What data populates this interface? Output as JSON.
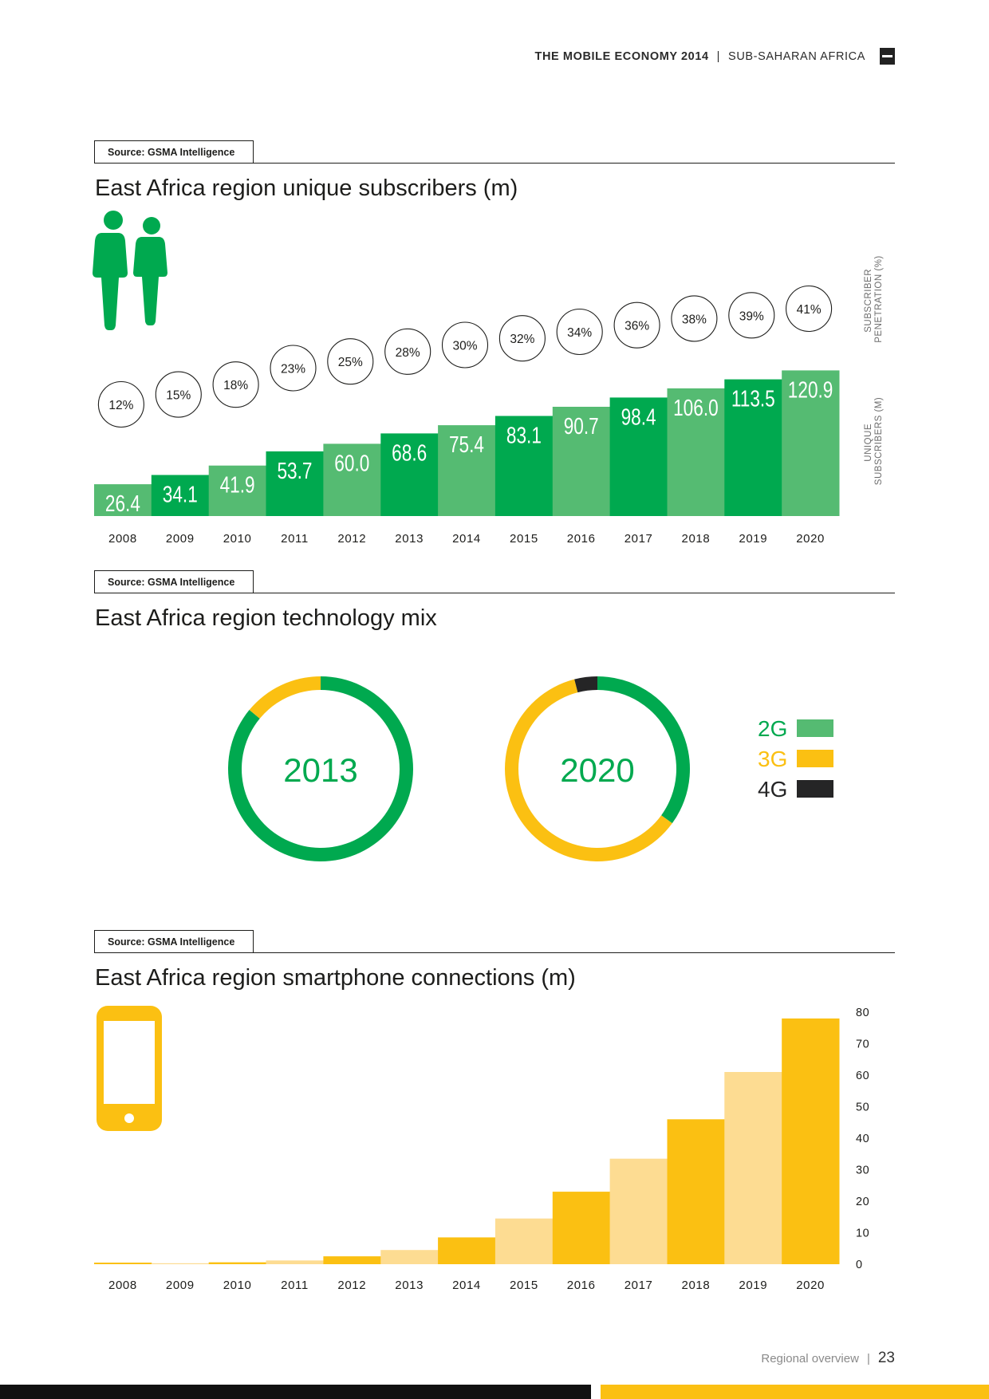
{
  "header": {
    "publication": "THE MOBILE ECONOMY 2014",
    "separator": "|",
    "region": "SUB-SAHARAN AFRICA"
  },
  "sources": [
    "Source: GSMA Intelligence",
    "Source: GSMA Intelligence",
    "Source: GSMA Intelligence"
  ],
  "colors": {
    "green_dark": "#00a94f",
    "green_light": "#55bb72",
    "yellow": "#fbc012",
    "yellow_light": "#fddc92",
    "dark": "#252526"
  },
  "icons": {
    "subscribers": "people-icon",
    "smartphone": "smartphone-icon"
  },
  "footer": {
    "section": "Regional overview",
    "separator": "|",
    "page": "23"
  },
  "chart_data": [
    {
      "type": "bar",
      "title": "East Africa region unique subscribers (m)",
      "categories": [
        "2008",
        "2009",
        "2010",
        "2011",
        "2012",
        "2013",
        "2014",
        "2015",
        "2016",
        "2017",
        "2018",
        "2019",
        "2020"
      ],
      "values": [
        26.4,
        34.1,
        41.9,
        53.7,
        60.0,
        68.6,
        75.4,
        83.1,
        90.7,
        98.4,
        106.0,
        113.5,
        120.9
      ],
      "value_labels": [
        "26.4",
        "34.1",
        "41.9",
        "53.7",
        "60.0",
        "68.6",
        "75.4",
        "83.1",
        "90.7",
        "98.4",
        "106.0",
        "113.5",
        "120.9"
      ],
      "penetration": [
        "12%",
        "15%",
        "18%",
        "23%",
        "25%",
        "28%",
        "30%",
        "32%",
        "34%",
        "36%",
        "38%",
        "39%",
        "41%"
      ],
      "penetration_values": [
        12,
        15,
        18,
        23,
        25,
        28,
        30,
        32,
        34,
        36,
        38,
        39,
        41
      ],
      "ylabel_bars": "UNIQUE SUBSCRIBERS (M)",
      "ylabel_circles": "SUBSCRIBER PENETRATION (%)",
      "ylim": [
        0,
        125
      ]
    },
    {
      "type": "pie",
      "title": "East Africa region technology mix",
      "charts": [
        {
          "label": "2013",
          "slices": [
            {
              "name": "2G",
              "value": 86
            },
            {
              "name": "3G",
              "value": 14
            }
          ]
        },
        {
          "label": "2020",
          "slices": [
            {
              "name": "2G",
              "value": 35
            },
            {
              "name": "3G",
              "value": 61
            },
            {
              "name": "4G",
              "value": 4
            }
          ]
        }
      ],
      "legend": [
        {
          "name": "2G",
          "color": "#55bb72"
        },
        {
          "name": "3G",
          "color": "#fbc012"
        },
        {
          "name": "4G",
          "color": "#252526"
        }
      ],
      "legend_placement": "right"
    },
    {
      "type": "bar",
      "title": "East Africa region smartphone connections (m)",
      "categories": [
        "2008",
        "2009",
        "2010",
        "2011",
        "2012",
        "2013",
        "2014",
        "2015",
        "2016",
        "2017",
        "2018",
        "2019",
        "2020"
      ],
      "values": [
        0.5,
        0.3,
        0.6,
        1.2,
        2.5,
        4.5,
        8.5,
        14.5,
        23,
        33.5,
        46,
        61,
        78
      ],
      "yticks": [
        "0",
        "10",
        "20",
        "30",
        "40",
        "50",
        "60",
        "70",
        "80"
      ],
      "ylim": [
        0,
        80
      ],
      "axis_side": "right"
    }
  ]
}
